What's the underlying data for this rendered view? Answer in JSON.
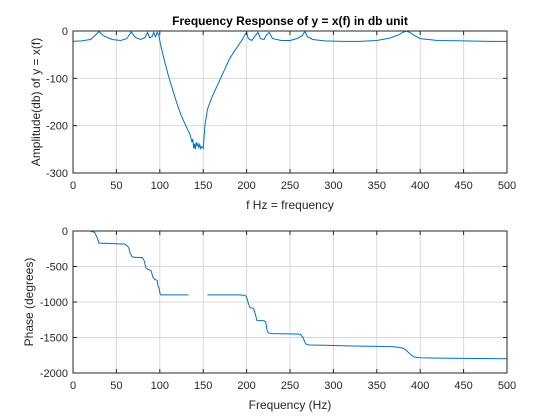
{
  "colors": {
    "series": "#0072bd",
    "axis": "#262626",
    "grid": "#d9d9d9",
    "background": "#ffffff"
  },
  "chart_data": [
    {
      "type": "line",
      "title": "Frequency Response of y = x(f) in db unit",
      "xlabel": "f Hz = frequency",
      "ylabel": "Amplitude(db) of y = x(f)",
      "xlim": [
        0,
        500
      ],
      "ylim": [
        -300,
        0
      ],
      "grid": true,
      "xticks": [
        0,
        50,
        100,
        150,
        200,
        250,
        300,
        350,
        400,
        450,
        500
      ],
      "yticks": [
        -300,
        -200,
        -100,
        0
      ],
      "series": [
        {
          "x": [
            0,
            10,
            20,
            25,
            30,
            35,
            45,
            55,
            62,
            67,
            72,
            78,
            83,
            86,
            88,
            91,
            93,
            95,
            97,
            99,
            101,
            105,
            110,
            115,
            120,
            125,
            130,
            135,
            137,
            138,
            139,
            140,
            141,
            142,
            143,
            144,
            145,
            146,
            147,
            148,
            149,
            150,
            151,
            152,
            155,
            160,
            165,
            170,
            175,
            180,
            185,
            190,
            195,
            198,
            200,
            202,
            206,
            210,
            213,
            216,
            220,
            223,
            226,
            230,
            240,
            250,
            258,
            264,
            267,
            270,
            276,
            290,
            310,
            330,
            350,
            365,
            375,
            380,
            384,
            388,
            392,
            400,
            420,
            450,
            480,
            500
          ],
          "y": [
            -22,
            -21,
            -18,
            -10,
            -1,
            -10,
            -18,
            -20,
            -16,
            -2,
            -14,
            -18,
            -14,
            -3,
            -14,
            -12,
            -3,
            -12,
            -3,
            -10,
            -30,
            -60,
            -95,
            -125,
            -155,
            -180,
            -200,
            -220,
            -235,
            -228,
            -248,
            -238,
            -250,
            -235,
            -242,
            -238,
            -246,
            -240,
            -248,
            -244,
            -246,
            -248,
            -225,
            -200,
            -165,
            -140,
            -120,
            -100,
            -80,
            -60,
            -45,
            -32,
            -18,
            -8,
            -3,
            -16,
            -20,
            -10,
            -3,
            -16,
            -18,
            -8,
            -3,
            -16,
            -20,
            -20,
            -16,
            -10,
            -1,
            -12,
            -18,
            -21,
            -22,
            -22,
            -20,
            -15,
            -8,
            -3,
            0,
            -3,
            -8,
            -16,
            -20,
            -21,
            -22,
            -22
          ]
        }
      ]
    },
    {
      "type": "line",
      "title": "",
      "xlabel": "Frequency (Hz)",
      "ylabel": "Phase (degrees)",
      "xlim": [
        0,
        500
      ],
      "ylim": [
        -2000,
        0
      ],
      "grid": true,
      "xticks": [
        0,
        50,
        100,
        150,
        200,
        250,
        300,
        350,
        400,
        450,
        500
      ],
      "yticks": [
        -2000,
        -1500,
        -1000,
        -500,
        0
      ],
      "series": [
        {
          "segments": [
            {
              "x": [
                0,
                20,
                25,
                28,
                30,
                40,
                60,
                64,
                66,
                68,
                70,
                80,
                82,
                84,
                86,
                88,
                90,
                92,
                94,
                96,
                97,
                98,
                99,
                100,
                100.5,
                101,
                110,
                120,
                130,
                133
              ],
              "y": [
                0,
                0,
                -20,
                -100,
                -170,
                -175,
                -185,
                -230,
                -320,
                -360,
                -370,
                -375,
                -420,
                -520,
                -540,
                -545,
                -560,
                -650,
                -680,
                -690,
                -700,
                -780,
                -800,
                -860,
                -890,
                -900,
                -900,
                -900,
                -900,
                -900
              ]
            },
            {
              "x": [
                155,
                170,
                190,
                198,
                200,
                202,
                204,
                206,
                208,
                210,
                212,
                220,
                222,
                224,
                226,
                230,
                250,
                262,
                265,
                268,
                272,
                290,
                320,
                350,
                370,
                380,
                384,
                388,
                392,
                396,
                400,
                420,
                450,
                500
              ],
              "y": [
                -900,
                -900,
                -900,
                -905,
                -930,
                -1020,
                -1080,
                -1085,
                -1090,
                -1170,
                -1260,
                -1265,
                -1280,
                -1420,
                -1440,
                -1445,
                -1450,
                -1455,
                -1500,
                -1590,
                -1605,
                -1610,
                -1620,
                -1625,
                -1630,
                -1650,
                -1680,
                -1730,
                -1770,
                -1780,
                -1785,
                -1790,
                -1795,
                -1800
              ]
            }
          ]
        }
      ]
    }
  ]
}
